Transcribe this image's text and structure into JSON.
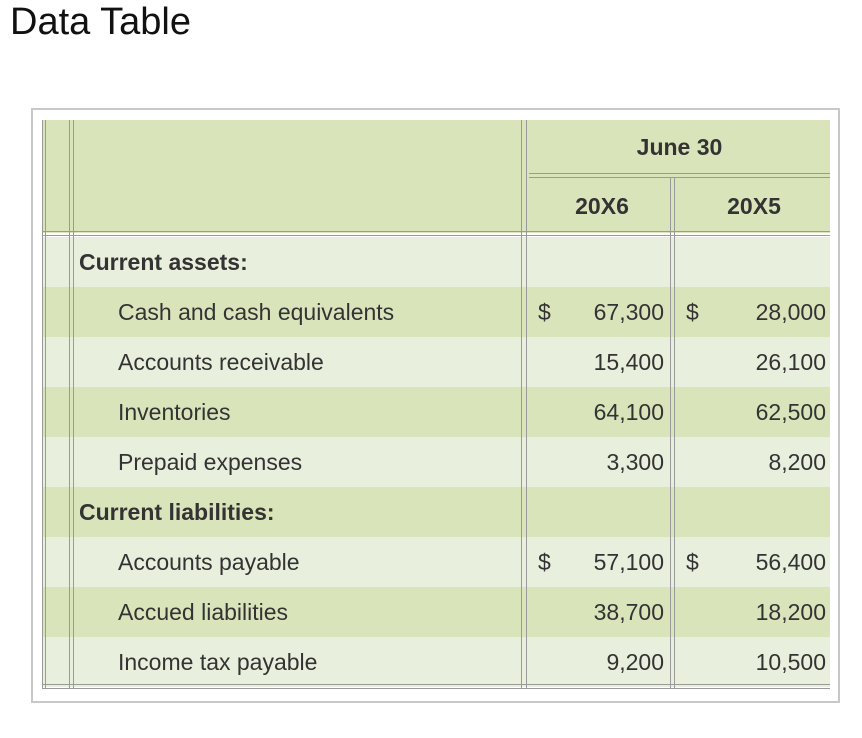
{
  "title": "Data Table",
  "header": {
    "group_label": "June 30",
    "col1": "20X6",
    "col2": "20X5"
  },
  "rows": [
    {
      "type": "section",
      "label": "Current assets:"
    },
    {
      "type": "item",
      "label": "Cash and cash equivalents",
      "d1": "$",
      "v1": "67,300",
      "d2": "$",
      "v2": "28,000"
    },
    {
      "type": "item",
      "label": "Accounts receivable",
      "d1": "",
      "v1": "15,400",
      "d2": "",
      "v2": "26,100"
    },
    {
      "type": "item",
      "label": "Inventories",
      "d1": "",
      "v1": "64,100",
      "d2": "",
      "v2": "62,500"
    },
    {
      "type": "item",
      "label": "Prepaid expenses",
      "d1": "",
      "v1": "3,300",
      "d2": "",
      "v2": "8,200"
    },
    {
      "type": "section",
      "label": "Current liabilities:"
    },
    {
      "type": "item",
      "label": "Accounts payable",
      "d1": "$",
      "v1": "57,100",
      "d2": "$",
      "v2": "56,400"
    },
    {
      "type": "item",
      "label": "Accued liabilities",
      "d1": "",
      "v1": "38,700",
      "d2": "",
      "v2": "18,200"
    },
    {
      "type": "item",
      "label": "Income tax payable",
      "d1": "",
      "v1": "9,200",
      "d2": "",
      "v2": "10,500"
    }
  ],
  "colors": {
    "band_dark": "#d9e4bb",
    "band_light": "#e8efdc",
    "border": "#c8c8c8"
  }
}
